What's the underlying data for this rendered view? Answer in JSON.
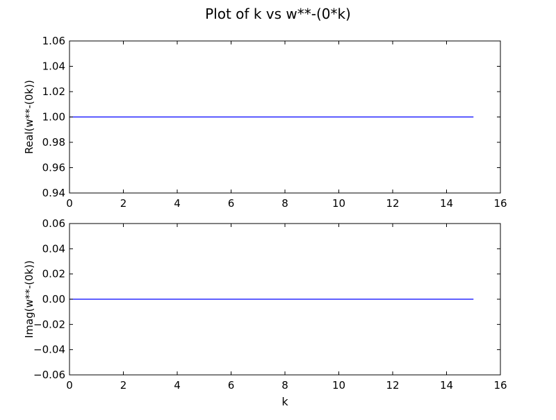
{
  "figure": {
    "title": "Plot of k vs w**-(0*k)"
  },
  "chart_data": [
    {
      "type": "line",
      "title": "",
      "xlabel": "",
      "ylabel": "Real(w**-(0k))",
      "xlim": [
        0,
        16
      ],
      "ylim": [
        0.94,
        1.06
      ],
      "xticks": [
        "0",
        "2",
        "4",
        "6",
        "8",
        "10",
        "12",
        "14",
        "16"
      ],
      "yticks": [
        "0.94",
        "0.96",
        "0.98",
        "1.00",
        "1.02",
        "1.04",
        "1.06"
      ],
      "grid": false,
      "line_color": "#0000ff",
      "x": [
        0,
        15
      ],
      "series": [
        {
          "values": [
            1.0,
            1.0
          ]
        }
      ]
    },
    {
      "type": "line",
      "title": "",
      "xlabel": "k",
      "ylabel": "Imag(w**-(0k))",
      "xlim": [
        0,
        16
      ],
      "ylim": [
        -0.06,
        0.06
      ],
      "xticks": [
        "0",
        "2",
        "4",
        "6",
        "8",
        "10",
        "12",
        "14",
        "16"
      ],
      "yticks": [
        "−0.06",
        "−0.04",
        "−0.02",
        "0.00",
        "0.02",
        "0.04",
        "0.06"
      ],
      "grid": false,
      "line_color": "#0000ff",
      "x": [
        0,
        15
      ],
      "series": [
        {
          "values": [
            0.0,
            0.0
          ]
        }
      ]
    }
  ]
}
